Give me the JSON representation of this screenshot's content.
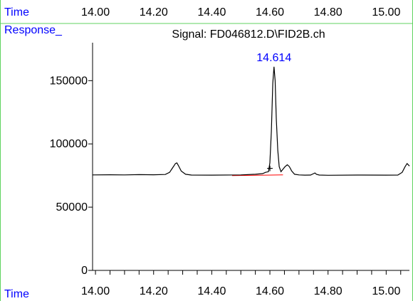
{
  "chart_data": {
    "type": "line",
    "title": "Signal: FD046812.D\\FID2B.ch",
    "xlabel": "Time",
    "ylabel": "Response_",
    "top_axis_label": "Time",
    "xlim": [
      13.99,
      15.08
    ],
    "ylim": [
      0,
      180000
    ],
    "x_ticks": [
      "14.00",
      "14.20",
      "14.40",
      "14.60",
      "14.80",
      "15.00"
    ],
    "x_tick_values": [
      14.0,
      14.2,
      14.4,
      14.6,
      14.8,
      15.0
    ],
    "y_ticks": [
      "0",
      "50000",
      "100000",
      "150000"
    ],
    "y_tick_values": [
      0,
      50000,
      100000,
      150000
    ],
    "peak_label": {
      "text": "14.614",
      "x": 14.614,
      "y": 161000
    },
    "marker": {
      "symbol": "+",
      "x": 14.6,
      "y": 80500
    },
    "baseline": {
      "x": [
        14.47,
        14.645
      ],
      "y": [
        75000,
        75500
      ]
    },
    "series": [
      {
        "x": [
          13.99,
          14.05,
          14.1,
          14.15,
          14.2,
          14.24,
          14.255,
          14.265,
          14.275,
          14.28,
          14.285,
          14.295,
          14.31,
          14.33,
          14.4,
          14.5,
          14.55,
          14.575,
          14.585,
          14.595,
          14.6,
          14.605,
          14.61,
          14.614,
          14.618,
          14.622,
          14.627,
          14.632,
          14.638,
          14.645,
          14.652,
          14.66,
          14.667,
          14.675,
          14.685,
          14.7,
          14.72,
          14.74,
          14.75,
          14.755,
          14.76,
          14.77,
          14.8,
          14.9,
          15.0,
          15.04,
          15.055,
          15.065,
          15.072,
          15.08
        ],
        "y": [
          75500,
          75600,
          75500,
          75700,
          75600,
          75800,
          77500,
          81000,
          84500,
          85000,
          83000,
          78500,
          76000,
          75400,
          75300,
          75500,
          76000,
          76500,
          77500,
          78000,
          85000,
          110000,
          148000,
          161000,
          150000,
          120000,
          95000,
          82000,
          78000,
          80000,
          82000,
          83500,
          82000,
          78500,
          76000,
          75500,
          75300,
          75400,
          76500,
          77000,
          76000,
          75400,
          75200,
          75400,
          75300,
          75400,
          77500,
          82000,
          84500,
          82500
        ]
      }
    ],
    "legend": "none",
    "grid": false,
    "colors": {
      "trace": "#000000",
      "baseline": "#ff0000",
      "text_blue": "#0000ff",
      "border_green": "#5fd35f"
    }
  }
}
